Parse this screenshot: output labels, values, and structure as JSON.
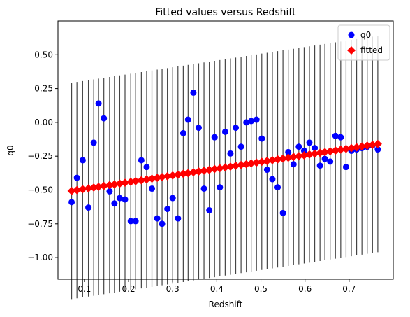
{
  "chart_data": {
    "type": "scatter",
    "title": "Fitted values versus Redshift",
    "xlabel": "Redshift",
    "ylabel": "q0",
    "xlim": [
      0.04,
      0.8
    ],
    "ylim": [
      -1.16,
      0.75
    ],
    "x_ticks": [
      0.1,
      0.2,
      0.3,
      0.4,
      0.5,
      0.6,
      0.7
    ],
    "x_tick_labels": [
      "0.1",
      "0.2",
      "0.3",
      "0.4",
      "0.5",
      "0.6",
      "0.7"
    ],
    "y_ticks": [
      -1.0,
      -0.75,
      -0.5,
      -0.25,
      0.0,
      0.25,
      0.5
    ],
    "y_tick_labels": [
      "−1.00",
      "−0.75",
      "−0.50",
      "−0.25",
      "0.00",
      "0.25",
      "0.50"
    ],
    "grid": false,
    "legend_position": "top-right",
    "x": [
      0.071,
      0.083,
      0.096,
      0.109,
      0.121,
      0.132,
      0.144,
      0.157,
      0.168,
      0.18,
      0.192,
      0.205,
      0.216,
      0.229,
      0.241,
      0.253,
      0.265,
      0.276,
      0.288,
      0.3,
      0.312,
      0.324,
      0.335,
      0.347,
      0.359,
      0.371,
      0.383,
      0.395,
      0.407,
      0.419,
      0.431,
      0.443,
      0.455,
      0.467,
      0.478,
      0.49,
      0.502,
      0.514,
      0.526,
      0.538,
      0.55,
      0.562,
      0.574,
      0.586,
      0.598,
      0.61,
      0.622,
      0.634,
      0.645,
      0.657,
      0.669,
      0.681,
      0.693,
      0.705,
      0.717,
      0.729,
      0.741,
      0.753,
      0.765
    ],
    "series": [
      {
        "name": "q0",
        "marker": "circle",
        "color": "#0000ff",
        "values": [
          -0.59,
          -0.41,
          -0.28,
          -0.63,
          -0.15,
          0.14,
          0.03,
          -0.51,
          -0.6,
          -0.56,
          -0.57,
          -0.73,
          -0.73,
          -0.28,
          -0.33,
          -0.49,
          -0.71,
          -0.75,
          -0.64,
          -0.56,
          -0.71,
          -0.08,
          0.02,
          0.22,
          -0.04,
          -0.49,
          -0.65,
          -0.11,
          -0.48,
          -0.07,
          -0.23,
          -0.04,
          -0.18,
          0.0,
          0.01,
          0.02,
          -0.12,
          -0.35,
          -0.42,
          -0.48,
          -0.67,
          -0.22,
          -0.31,
          -0.18,
          -0.21,
          -0.15,
          -0.19,
          -0.32,
          -0.27,
          -0.29,
          -0.1,
          -0.11,
          -0.33,
          -0.21,
          -0.2,
          -0.19,
          -0.18,
          -0.17,
          -0.2
        ]
      },
      {
        "name": "fitted",
        "marker": "diamond",
        "color": "#ff0000",
        "intercept": -0.5425,
        "slope": 0.5
      }
    ],
    "error_bar_half_width": 0.8,
    "error_bar_color": "#444444"
  }
}
